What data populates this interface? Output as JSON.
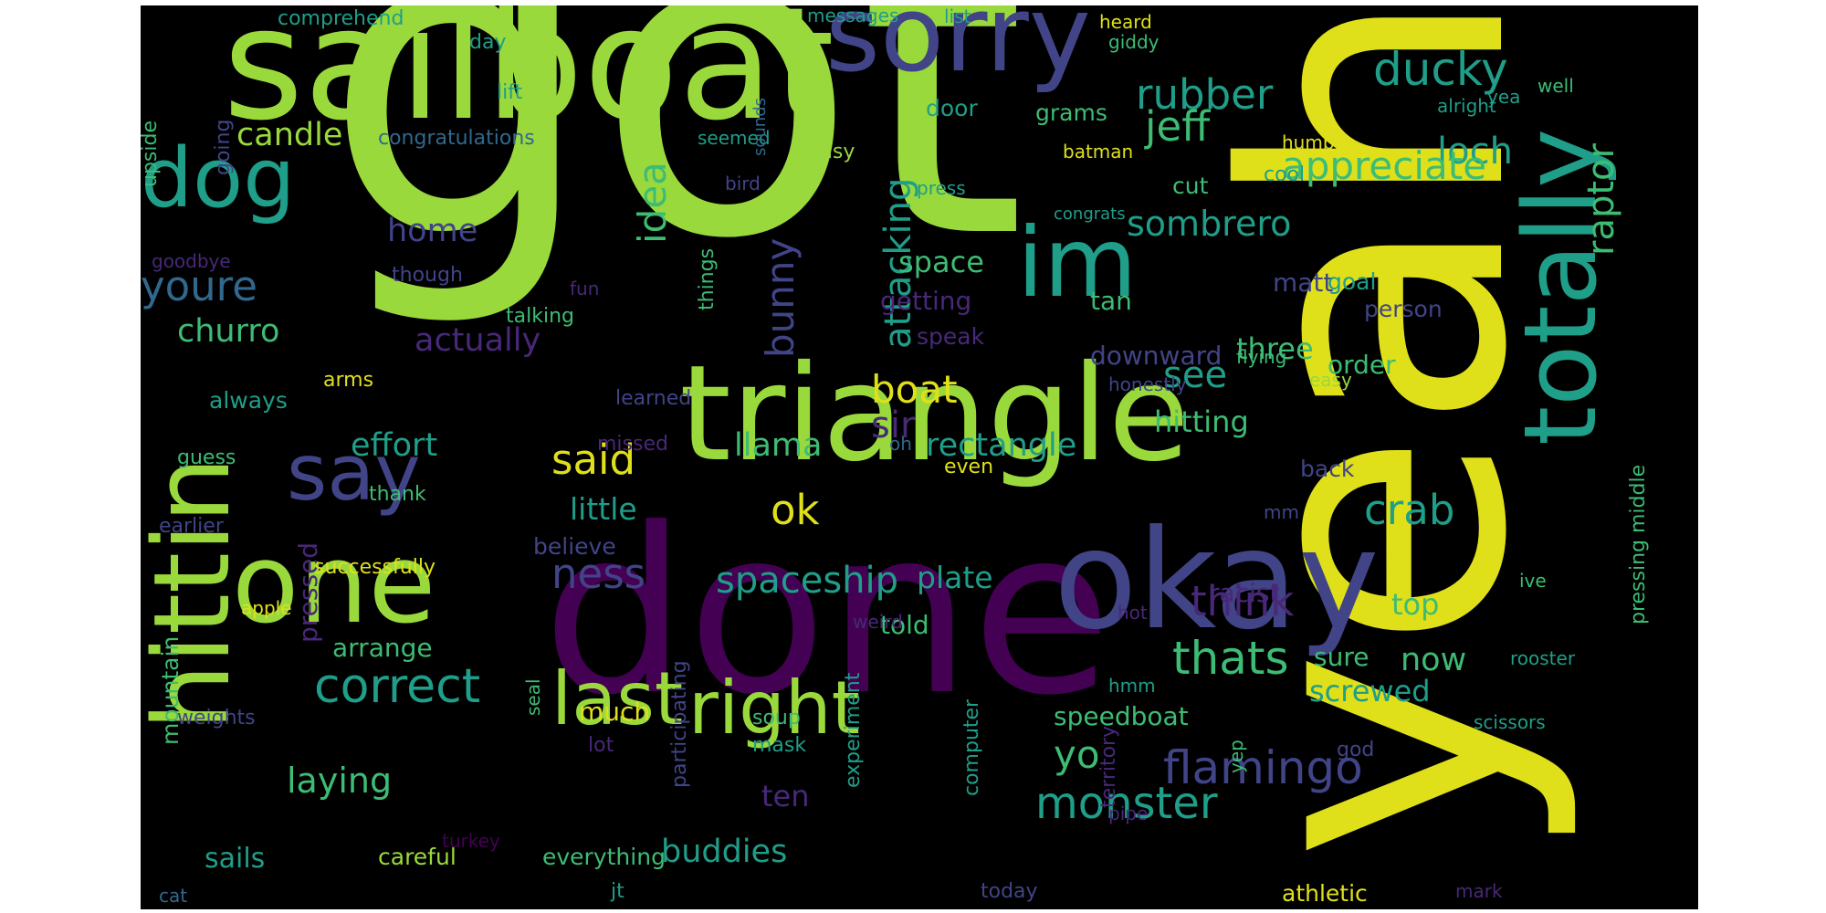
{
  "colors": {
    "background": "#000000",
    "canvas": "#ffffff",
    "lime": "#9ad93c",
    "lime_dark": "#76cb4a",
    "yellow": "#dfe01a",
    "teal": "#1f9e89",
    "teal_dark": "#21918c",
    "green": "#3dbc74",
    "blue": "#31688e",
    "indigo": "#414487",
    "indigo_dark": "#3b528b",
    "purple": "#440154",
    "purple_mid": "#482878"
  },
  "words": [
    "got",
    "yeah",
    "done",
    "sailboat",
    "triangle",
    "okay",
    "totally",
    "sorry",
    "hittin",
    "one",
    "im",
    "dog",
    "say",
    "last",
    "right",
    "flamingo",
    "monster",
    "spaceship",
    "ness",
    "correct",
    "thats",
    "think",
    "crab",
    "ducky",
    "rubber",
    "jeff",
    "loch",
    "appreciate",
    "raptor",
    "sombrero",
    "idea",
    "bunny",
    "attacking",
    "candle",
    "home",
    "youre",
    "churro",
    "actually",
    "boat",
    "sir",
    "see",
    "said",
    "ok",
    "effort",
    "llama",
    "rectangle",
    "little",
    "believe",
    "plate",
    "told",
    "pressed",
    "arrange",
    "successfully",
    "laying",
    "sails",
    "careful",
    "everything",
    "buddies",
    "ten",
    "yo",
    "speedboat",
    "screwed",
    "now",
    "sure",
    "top",
    "order",
    "three",
    "hitting",
    "matt",
    "space",
    "getting",
    "door",
    "grams",
    "cut",
    "cool",
    "goal",
    "tan",
    "person",
    "downward",
    "flying",
    "honestly",
    "easy",
    "mountain",
    "weights",
    "apple",
    "seal",
    "soup",
    "mask",
    "much",
    "lot",
    "participating",
    "experiment",
    "computer",
    "territory",
    "hmm",
    "god",
    "yep",
    "pipe",
    "turkey",
    "cat",
    "jt",
    "today",
    "athletic",
    "mark",
    "rooster",
    "scissors",
    "racist",
    "ive",
    "hot",
    "weird",
    "pressing middle",
    "back",
    "mm",
    "even",
    "oh",
    "guess",
    "earlier",
    "thank",
    "always",
    "arms",
    "learned",
    "missed",
    "talking",
    "fun",
    "though",
    "goodbye",
    "ram",
    "bird",
    "things",
    "congrats",
    "press",
    "batman",
    "hump",
    "alright",
    "yea",
    "well",
    "heard",
    "giddy",
    "list",
    "messages",
    "comprehend",
    "day",
    "lift",
    "going",
    "upside",
    "congratulations",
    "seemed",
    "busy",
    "sounds",
    "speak"
  ]
}
